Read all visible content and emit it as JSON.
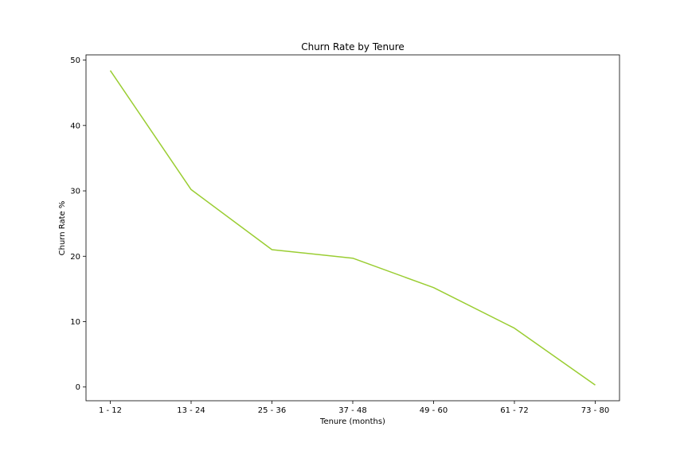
{
  "chart_data": {
    "type": "line",
    "title": "Churn Rate by Tenure",
    "xlabel": "Tenure (months)",
    "ylabel": "Churn Rate %",
    "categories": [
      "1 - 12",
      "13 - 24",
      "25 - 36",
      "37 - 48",
      "49 - 60",
      "61 - 72",
      "73 - 80"
    ],
    "series": [
      {
        "values": [
          48.4,
          30.2,
          21.0,
          19.7,
          15.2,
          9.0,
          0.3
        ]
      }
    ],
    "yticks": [
      0,
      10,
      20,
      30,
      40,
      50
    ],
    "ylim": [
      -2.1,
      50.8
    ],
    "grid": false,
    "line_color": "#9acd32"
  }
}
